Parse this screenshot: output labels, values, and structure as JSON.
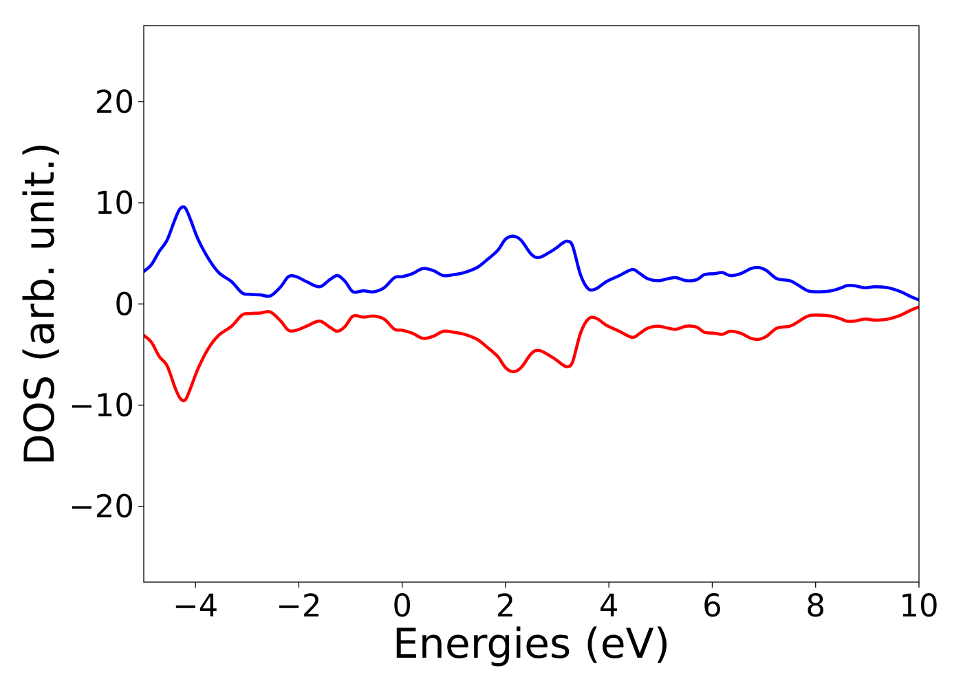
{
  "chart_data": {
    "type": "line",
    "title": "",
    "xlabel": "Energies (eV)",
    "ylabel": "DOS (arb. unit.)",
    "xlim": [
      -5,
      10
    ],
    "ylim": [
      -27.5,
      27.5
    ],
    "xticks": [
      -4,
      -2,
      0,
      2,
      4,
      6,
      8,
      10
    ],
    "yticks": [
      -20,
      -10,
      0,
      10,
      20
    ],
    "xtick_labels": [
      "−4",
      "−2",
      "0",
      "2",
      "4",
      "6",
      "8",
      "10"
    ],
    "ytick_labels": [
      "−20",
      "−10",
      "0",
      "10",
      "20"
    ],
    "grid": false,
    "legend": "none",
    "series": [
      {
        "color": "#0000ff",
        "x": [
          -5.0,
          -4.85,
          -4.7,
          -4.55,
          -4.4,
          -4.3,
          -4.2,
          -4.1,
          -3.95,
          -3.75,
          -3.55,
          -3.3,
          -3.1,
          -2.95,
          -2.75,
          -2.55,
          -2.35,
          -2.2,
          -2.05,
          -1.85,
          -1.6,
          -1.4,
          -1.25,
          -1.1,
          -0.95,
          -0.75,
          -0.55,
          -0.35,
          -0.15,
          0.0,
          0.2,
          0.4,
          0.6,
          0.8,
          1.0,
          1.2,
          1.45,
          1.65,
          1.85,
          2.0,
          2.15,
          2.3,
          2.5,
          2.65,
          2.85,
          3.0,
          3.1,
          3.2,
          3.3,
          3.45,
          3.6,
          3.75,
          3.95,
          4.2,
          4.45,
          4.6,
          4.75,
          4.95,
          5.15,
          5.3,
          5.5,
          5.7,
          5.85,
          6.05,
          6.2,
          6.35,
          6.55,
          6.75,
          6.9,
          7.05,
          7.25,
          7.5,
          7.65,
          7.85,
          8.05,
          8.3,
          8.5,
          8.6,
          8.75,
          8.95,
          9.15,
          9.4,
          9.65,
          9.85,
          10.0
        ],
        "y": [
          3.2,
          3.9,
          5.2,
          6.3,
          8.3,
          9.4,
          9.5,
          8.4,
          6.4,
          4.5,
          3.1,
          2.2,
          1.1,
          0.95,
          0.9,
          0.8,
          1.7,
          2.7,
          2.7,
          2.2,
          1.7,
          2.4,
          2.8,
          2.2,
          1.2,
          1.3,
          1.2,
          1.6,
          2.6,
          2.7,
          3.0,
          3.5,
          3.3,
          2.8,
          2.9,
          3.1,
          3.6,
          4.4,
          5.3,
          6.4,
          6.7,
          6.3,
          4.9,
          4.6,
          5.1,
          5.6,
          6.0,
          6.2,
          5.7,
          2.9,
          1.5,
          1.5,
          2.2,
          2.8,
          3.4,
          3.0,
          2.5,
          2.3,
          2.5,
          2.6,
          2.3,
          2.4,
          2.9,
          3.0,
          3.1,
          2.8,
          3.0,
          3.5,
          3.6,
          3.3,
          2.5,
          2.3,
          1.9,
          1.3,
          1.2,
          1.3,
          1.6,
          1.8,
          1.8,
          1.6,
          1.7,
          1.6,
          1.2,
          0.7,
          0.4
        ]
      },
      {
        "color": "#ff0000",
        "x": [
          -5.0,
          -4.85,
          -4.7,
          -4.55,
          -4.4,
          -4.3,
          -4.2,
          -4.1,
          -3.95,
          -3.75,
          -3.55,
          -3.3,
          -3.1,
          -2.95,
          -2.75,
          -2.55,
          -2.35,
          -2.2,
          -2.05,
          -1.85,
          -1.6,
          -1.4,
          -1.25,
          -1.1,
          -0.95,
          -0.75,
          -0.55,
          -0.35,
          -0.15,
          0.0,
          0.2,
          0.4,
          0.6,
          0.8,
          1.0,
          1.2,
          1.45,
          1.65,
          1.85,
          2.0,
          2.15,
          2.3,
          2.5,
          2.65,
          2.85,
          3.0,
          3.1,
          3.2,
          3.3,
          3.45,
          3.6,
          3.75,
          3.95,
          4.2,
          4.45,
          4.6,
          4.75,
          4.95,
          5.15,
          5.3,
          5.5,
          5.7,
          5.85,
          6.05,
          6.2,
          6.35,
          6.55,
          6.75,
          6.9,
          7.05,
          7.25,
          7.5,
          7.65,
          7.85,
          8.05,
          8.3,
          8.5,
          8.6,
          8.75,
          8.95,
          9.15,
          9.4,
          9.65,
          9.85,
          10.0
        ],
        "y": [
          -3.1,
          -3.8,
          -5.2,
          -6.1,
          -8.2,
          -9.3,
          -9.5,
          -8.4,
          -6.4,
          -4.4,
          -3.1,
          -2.2,
          -1.1,
          -0.95,
          -0.9,
          -0.8,
          -1.7,
          -2.6,
          -2.6,
          -2.2,
          -1.7,
          -2.3,
          -2.7,
          -2.2,
          -1.2,
          -1.3,
          -1.2,
          -1.5,
          -2.5,
          -2.6,
          -2.9,
          -3.4,
          -3.2,
          -2.7,
          -2.8,
          -3.0,
          -3.5,
          -4.3,
          -5.2,
          -6.3,
          -6.7,
          -6.3,
          -4.9,
          -4.6,
          -5.1,
          -5.6,
          -6.0,
          -6.2,
          -5.7,
          -2.9,
          -1.5,
          -1.4,
          -2.1,
          -2.7,
          -3.3,
          -2.9,
          -2.4,
          -2.2,
          -2.4,
          -2.5,
          -2.2,
          -2.3,
          -2.8,
          -2.9,
          -3.0,
          -2.7,
          -2.9,
          -3.4,
          -3.5,
          -3.2,
          -2.4,
          -2.2,
          -1.8,
          -1.2,
          -1.1,
          -1.2,
          -1.5,
          -1.7,
          -1.7,
          -1.5,
          -1.6,
          -1.5,
          -1.1,
          -0.6,
          -0.3
        ]
      }
    ]
  }
}
